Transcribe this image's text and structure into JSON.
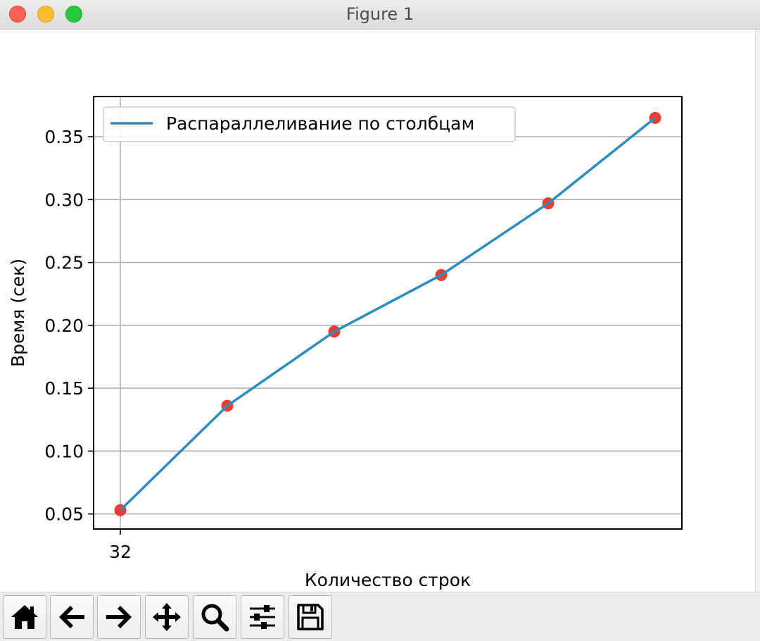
{
  "window": {
    "title": "Figure 1"
  },
  "chart_data": {
    "type": "line",
    "xlabel": "Количество строк",
    "ylabel": "Время (сек)",
    "x": [
      32,
      64,
      96,
      128,
      160,
      192
    ],
    "xticks": [
      32
    ],
    "xlim": [
      24,
      200
    ],
    "ylim": [
      0.038,
      0.382
    ],
    "yticks": [
      0.05,
      0.1,
      0.15,
      0.2,
      0.25,
      0.3,
      0.35
    ],
    "ytick_labels": [
      "0.05",
      "0.10",
      "0.15",
      "0.20",
      "0.25",
      "0.30",
      "0.35"
    ],
    "grid": true,
    "legend_position": "top-left",
    "series": [
      {
        "name": "Распараллеливание по столбцам",
        "values": [
          0.053,
          0.136,
          0.195,
          0.24,
          0.297,
          0.365
        ],
        "color": "#2b8cbe"
      }
    ],
    "marker_color": "#f03027"
  },
  "toolbar": {
    "buttons": [
      {
        "name": "home-button",
        "icon": "home-icon"
      },
      {
        "name": "back-button",
        "icon": "arrow-left-icon"
      },
      {
        "name": "forward-button",
        "icon": "arrow-right-icon"
      },
      {
        "name": "pan-button",
        "icon": "move-icon"
      },
      {
        "name": "zoom-button",
        "icon": "magnifier-icon"
      },
      {
        "name": "configure-subplots-button",
        "icon": "sliders-icon"
      },
      {
        "name": "save-button",
        "icon": "floppy-disk-icon"
      }
    ]
  }
}
